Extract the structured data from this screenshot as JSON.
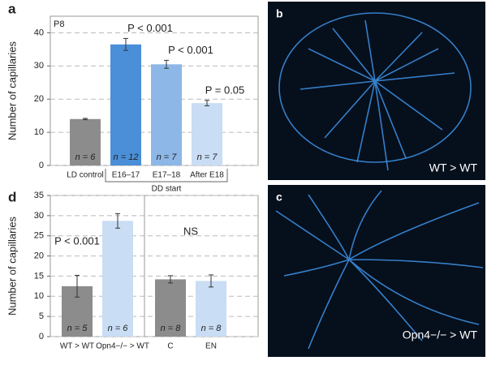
{
  "chart_data": [
    {
      "type": "bar",
      "letter": "a",
      "corner_label": "P8",
      "ylabel": "Number of capillaries",
      "categories": [
        "LD control",
        "E16–17",
        "E17–18",
        "After E18"
      ],
      "group_label": "DD start",
      "values": [
        14,
        36.5,
        30.5,
        18.8
      ],
      "errors": [
        0.2,
        1.8,
        1.2,
        0.8
      ],
      "colors": [
        "#8c8c8c",
        "#4a8fd8",
        "#8db7e6",
        "#c9ddf4"
      ],
      "n_labels": [
        "n = 6",
        "n = 12",
        "n = 7",
        "n = 7"
      ],
      "p_labels": [
        null,
        "P < 0.001",
        "P < 0.001",
        "P = 0.05"
      ],
      "ylim": [
        0,
        45
      ],
      "yticks": [
        0,
        10,
        20,
        30,
        40
      ],
      "grid": true
    },
    {
      "type": "bar",
      "letter": "d",
      "ylabel": "Number of capillaries",
      "categories": [
        "WT > WT",
        "Opn4−/− > WT",
        "C",
        "EN"
      ],
      "values": [
        12.5,
        28.7,
        14.2,
        13.8
      ],
      "errors": [
        2.7,
        1.8,
        0.9,
        1.5
      ],
      "colors": [
        "#8c8c8c",
        "#c9ddf4",
        "#8c8c8c",
        "#c9ddf4"
      ],
      "n_labels": [
        "n = 5",
        "n = 6",
        "n = 8",
        "n = 8"
      ],
      "annotations": [
        "P < 0.001",
        "NS"
      ],
      "ylim": [
        0,
        35
      ],
      "yticks": [
        0,
        5,
        10,
        15,
        20,
        25,
        30,
        35
      ],
      "grid": true
    }
  ],
  "images": [
    {
      "letter": "b",
      "caption": "WT > WT"
    },
    {
      "letter": "c",
      "caption": "Opn4−/− > WT"
    }
  ]
}
